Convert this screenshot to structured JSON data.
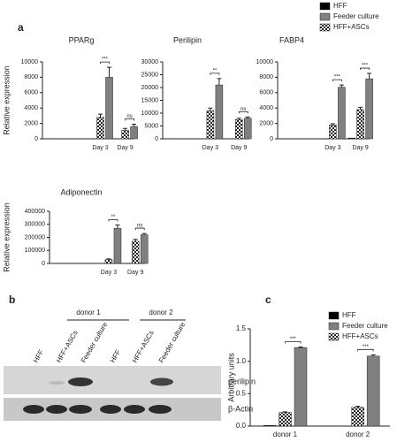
{
  "panel_labels": [
    "a",
    "b",
    "c"
  ],
  "blot": {
    "donors": [
      "donor 1",
      "donor 2"
    ],
    "lanes": [
      "HFF",
      "HFF+ASCs",
      "Feeder culture",
      "HFF",
      "HFF+ASCs",
      "Feeder culture"
    ],
    "bands": [
      "perilipin",
      "β-Actin"
    ]
  },
  "chart_data": [
    {
      "type": "bar",
      "title": "PPARg",
      "y_label": "Relative expression",
      "categories": [
        "Day 3",
        "Day 9"
      ],
      "annotations": [
        "***",
        "ns"
      ],
      "ylim": [
        0,
        10000
      ],
      "yticks": [
        0,
        2000,
        4000,
        6000,
        8000,
        10000
      ],
      "series": [
        {
          "name": "HFF",
          "color": "#000000",
          "values": [
            0,
            0
          ]
        },
        {
          "name": "Feeder culture",
          "color": "#808080",
          "values": [
            8000,
            1600
          ],
          "errors": [
            1300,
            300
          ]
        },
        {
          "name": "HFF+ASCs",
          "color": "#222222",
          "pattern": "checker",
          "values": [
            2800,
            1100
          ],
          "errors": [
            400,
            250
          ]
        }
      ]
    },
    {
      "type": "bar",
      "title": "Perilipin",
      "categories": [
        "Day 3",
        "Day 9"
      ],
      "annotations": [
        "**",
        "ns"
      ],
      "ylim": [
        0,
        30000
      ],
      "yticks": [
        0,
        5000,
        10000,
        15000,
        20000,
        25000,
        30000
      ],
      "series": [
        {
          "color": "#000000",
          "values": [
            0,
            0
          ]
        },
        {
          "color": "#808080",
          "values": [
            21000,
            8000
          ],
          "errors": [
            2500,
            500
          ]
        },
        {
          "color": "#222222",
          "pattern": "checker",
          "values": [
            11000,
            7500
          ],
          "errors": [
            1000,
            500
          ]
        }
      ]
    },
    {
      "type": "bar",
      "title": "FABP4",
      "categories": [
        "Day 3",
        "Day 9"
      ],
      "annotations": [
        "***",
        "***"
      ],
      "ylim": [
        0,
        10000
      ],
      "yticks": [
        0,
        2000,
        4000,
        6000,
        8000,
        10000
      ],
      "series": [
        {
          "color": "#000000",
          "values": [
            0,
            100
          ]
        },
        {
          "color": "#808080",
          "values": [
            6700,
            7800
          ],
          "errors": [
            300,
            700
          ]
        },
        {
          "color": "#222222",
          "pattern": "checker",
          "values": [
            1800,
            3800
          ],
          "errors": [
            150,
            300
          ]
        }
      ]
    },
    {
      "type": "bar",
      "title": "Adiponectin",
      "y_label": "Relative expression",
      "categories": [
        "Day 3",
        "Day 9"
      ],
      "annotations": [
        "**",
        "ns"
      ],
      "ylim": [
        0,
        400000
      ],
      "yticks": [
        0,
        100000,
        200000,
        300000,
        400000
      ],
      "series": [
        {
          "color": "#000000",
          "values": [
            0,
            0
          ]
        },
        {
          "color": "#808080",
          "values": [
            270000,
            220000
          ],
          "errors": [
            25000,
            10000
          ]
        },
        {
          "color": "#222222",
          "pattern": "checker",
          "values": [
            30000,
            170000
          ],
          "errors": [
            5000,
            15000
          ]
        }
      ]
    },
    {
      "type": "bar",
      "y_label": "Arbitrary units",
      "categories": [
        "donor 1",
        "donor 2"
      ],
      "annotations": [
        "***",
        "***"
      ],
      "ylim": [
        0,
        1.5
      ],
      "yticks": [
        {
          "value": 0,
          "label": "0.0"
        },
        {
          "value": 0.5,
          "label": "0.5"
        },
        {
          "value": 1,
          "label": "1.0"
        },
        {
          "value": 1.5,
          "label": "1.5"
        }
      ],
      "series": [
        {
          "name": "HFF",
          "color": "#000000",
          "values": [
            0.01,
            0
          ]
        },
        {
          "name": "Feeder culture",
          "color": "#808080",
          "values": [
            1.21,
            1.08
          ],
          "errors": [
            0.01,
            0.02
          ]
        },
        {
          "name": "HFF+ASCs",
          "color": "#222222",
          "pattern": "checker",
          "values": [
            0.21,
            0.29
          ],
          "errors": [
            0.01,
            0.015
          ]
        }
      ]
    }
  ]
}
